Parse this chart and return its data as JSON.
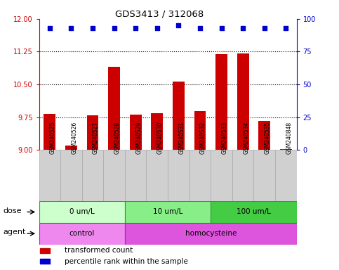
{
  "title": "GDS3413 / 312068",
  "samples": [
    "GSM240525",
    "GSM240526",
    "GSM240527",
    "GSM240528",
    "GSM240529",
    "GSM240530",
    "GSM240531",
    "GSM240532",
    "GSM240533",
    "GSM240534",
    "GSM240535",
    "GSM240848"
  ],
  "bar_values": [
    9.82,
    9.1,
    9.79,
    10.9,
    9.81,
    9.84,
    10.57,
    9.89,
    11.19,
    11.21,
    9.67,
    9.02
  ],
  "percentile_values": [
    93,
    93,
    93,
    93,
    93,
    93,
    95,
    93,
    93,
    93,
    93,
    93
  ],
  "bar_color": "#cc0000",
  "dot_color": "#0000cc",
  "ylim_left": [
    9,
    12
  ],
  "ylim_right": [
    0,
    100
  ],
  "yticks_left": [
    9,
    9.75,
    10.5,
    11.25,
    12
  ],
  "yticks_right": [
    0,
    25,
    50,
    75,
    100
  ],
  "gridlines": [
    9.75,
    10.5,
    11.25
  ],
  "dose_groups": [
    {
      "label": "0 um/L",
      "start": 0,
      "end": 4,
      "color": "#ccffcc"
    },
    {
      "label": "10 um/L",
      "start": 4,
      "end": 8,
      "color": "#88ee88"
    },
    {
      "label": "100 um/L",
      "start": 8,
      "end": 12,
      "color": "#44cc44"
    }
  ],
  "agent_groups": [
    {
      "label": "control",
      "start": 0,
      "end": 4,
      "color": "#ee88ee"
    },
    {
      "label": "homocysteine",
      "start": 4,
      "end": 12,
      "color": "#dd55dd"
    }
  ],
  "dose_label": "dose",
  "agent_label": "agent",
  "legend_bar_label": "transformed count",
  "legend_dot_label": "percentile rank within the sample",
  "background_color": "#ffffff",
  "tick_label_bg": "#d0d0d0",
  "left_axis_color": "#cc0000",
  "right_axis_color": "#0000cc"
}
